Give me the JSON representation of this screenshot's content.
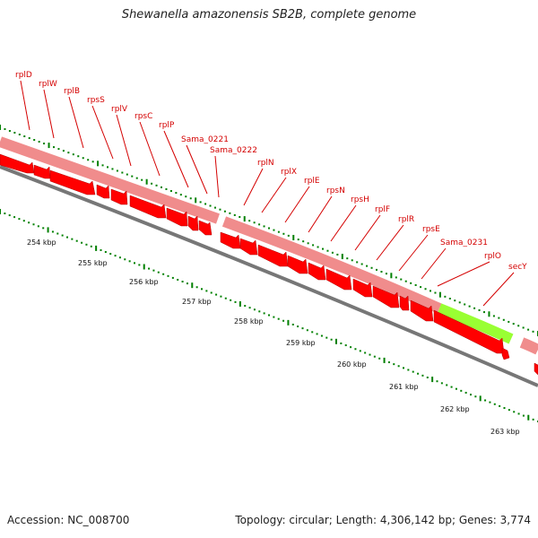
{
  "title": "Shewanella amazonensis SB2B, complete genome",
  "accession": "Accession: NC_008700",
  "topology": "Topology: circular; Length: 4,306,142 bp; Genes: 3,774",
  "colors": {
    "gene_label": "#d40000",
    "cds_arrow": "#ff0000",
    "cds_bar": "#f08c8c",
    "highlight_bar": "#99ff33",
    "tick": "#008000",
    "backbone": "#777777"
  },
  "gene_labels": [
    "rplD",
    "rplW",
    "rplB",
    "rpsS",
    "rplV",
    "rpsC",
    "rplP",
    "Sama_0221",
    "Sama_0222",
    "rplN",
    "rplX",
    "rplE",
    "rpsN",
    "rpsH",
    "rplF",
    "rplR",
    "rpsE",
    "Sama_0231",
    "rplO",
    "secY"
  ],
  "kbp_labels": [
    "254 kbp",
    "255 kbp",
    "256 kbp",
    "257 kbp",
    "258 kbp",
    "259 kbp",
    "260 kbp",
    "261 kbp",
    "262 kbp",
    "263 kbp"
  ]
}
